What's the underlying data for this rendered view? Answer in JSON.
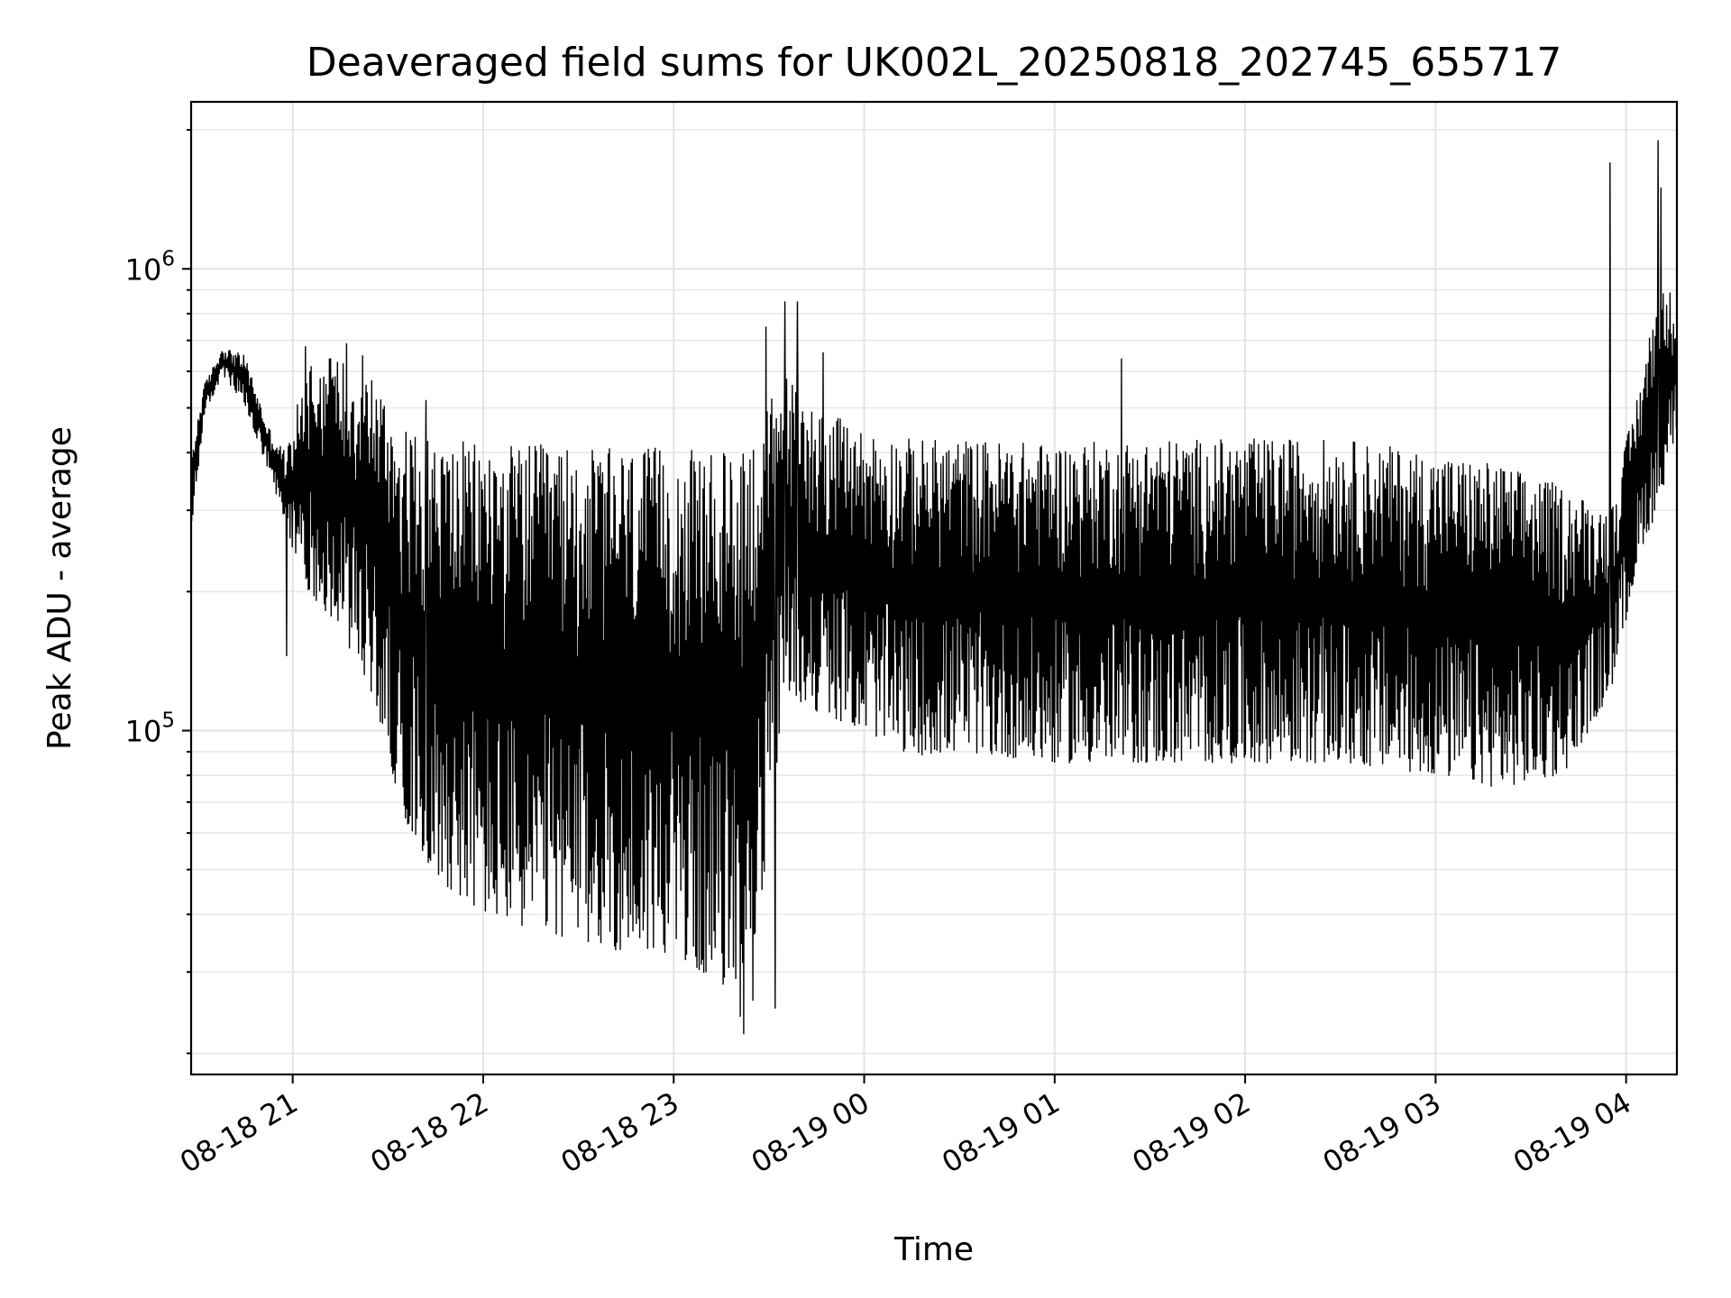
{
  "chart_data": {
    "type": "line",
    "title": "Deaveraged field sums for UK002L_20250818_202745_655717",
    "xlabel": "Time",
    "ylabel": "Peak ADU - average",
    "yscale": "log",
    "ylim": [
      18000,
      2300000
    ],
    "xlim": [
      "2025-08-18 20:28",
      "2025-08-19 04:16"
    ],
    "grid": true,
    "x_ticks": [
      {
        "value": "2025-08-18 21:00",
        "label": "08-18 21"
      },
      {
        "value": "2025-08-18 22:00",
        "label": "08-18 22"
      },
      {
        "value": "2025-08-18 23:00",
        "label": "08-18 23"
      },
      {
        "value": "2025-08-19 00:00",
        "label": "08-19 00"
      },
      {
        "value": "2025-08-19 01:00",
        "label": "08-19 01"
      },
      {
        "value": "2025-08-19 02:00",
        "label": "08-19 02"
      },
      {
        "value": "2025-08-19 03:00",
        "label": "08-19 03"
      },
      {
        "value": "2025-08-19 04:00",
        "label": "08-19 04"
      }
    ],
    "y_ticks": [
      {
        "value": 100000,
        "base": "10",
        "exp": "5"
      },
      {
        "value": 1000000,
        "base": "10",
        "exp": "6"
      }
    ],
    "series": [
      {
        "color": "#000000",
        "envelope": [
          {
            "x": "2025-08-18 20:28",
            "low": 260000,
            "high": 400000
          },
          {
            "x": "2025-08-18 20:32",
            "low": 480000,
            "high": 560000
          },
          {
            "x": "2025-08-18 20:38",
            "low": 590000,
            "high": 680000
          },
          {
            "x": "2025-08-18 20:45",
            "low": 500000,
            "high": 650000
          },
          {
            "x": "2025-08-18 20:52",
            "low": 370000,
            "high": 460000
          },
          {
            "x": "2025-08-18 20:58",
            "low": 270000,
            "high": 400000
          },
          {
            "x": "2025-08-18 21:05",
            "low": 200000,
            "high": 650000
          },
          {
            "x": "2025-08-18 21:15",
            "low": 165000,
            "high": 650000
          },
          {
            "x": "2025-08-18 21:25",
            "low": 120000,
            "high": 600000
          },
          {
            "x": "2025-08-18 21:35",
            "low": 65000,
            "high": 450000
          },
          {
            "x": "2025-08-18 21:45",
            "low": 48000,
            "high": 430000
          },
          {
            "x": "2025-08-18 22:00",
            "low": 40000,
            "high": 420000
          },
          {
            "x": "2025-08-18 22:15",
            "low": 37000,
            "high": 420000
          },
          {
            "x": "2025-08-18 22:30",
            "low": 35000,
            "high": 410000
          },
          {
            "x": "2025-08-18 22:45",
            "low": 33000,
            "high": 410000
          },
          {
            "x": "2025-08-18 23:00",
            "low": 33000,
            "high": 410000
          },
          {
            "x": "2025-08-18 23:15",
            "low": 28000,
            "high": 400000
          },
          {
            "x": "2025-08-18 23:25",
            "low": 30000,
            "high": 450000
          },
          {
            "x": "2025-08-18 23:35",
            "low": 120000,
            "high": 600000
          },
          {
            "x": "2025-08-18 23:45",
            "low": 110000,
            "high": 500000
          },
          {
            "x": "2025-08-19 00:00",
            "low": 100000,
            "high": 450000
          },
          {
            "x": "2025-08-19 00:15",
            "low": 88000,
            "high": 430000
          },
          {
            "x": "2025-08-19 00:30",
            "low": 90000,
            "high": 430000
          },
          {
            "x": "2025-08-19 01:00",
            "low": 85000,
            "high": 420000
          },
          {
            "x": "2025-08-19 01:30",
            "low": 85000,
            "high": 430000
          },
          {
            "x": "2025-08-19 02:00",
            "low": 85000,
            "high": 430000
          },
          {
            "x": "2025-08-19 02:30",
            "low": 85000,
            "high": 430000
          },
          {
            "x": "2025-08-19 03:00",
            "low": 80000,
            "high": 400000
          },
          {
            "x": "2025-08-19 03:20",
            "low": 75000,
            "high": 380000
          },
          {
            "x": "2025-08-19 03:40",
            "low": 80000,
            "high": 340000
          },
          {
            "x": "2025-08-19 03:55",
            "low": 120000,
            "high": 300000
          },
          {
            "x": "2025-08-19 04:05",
            "low": 250000,
            "high": 600000
          },
          {
            "x": "2025-08-19 04:10",
            "low": 300000,
            "high": 900000
          },
          {
            "x": "2025-08-19 04:16",
            "low": 450000,
            "high": 900000
          }
        ],
        "spikes": [
          {
            "x": "2025-08-18 20:58",
            "value": 145000
          },
          {
            "x": "2025-08-18 21:04",
            "value": 680000
          },
          {
            "x": "2025-08-18 21:12",
            "value": 640000
          },
          {
            "x": "2025-08-18 21:17",
            "value": 690000
          },
          {
            "x": "2025-08-18 21:22",
            "value": 650000
          },
          {
            "x": "2025-08-18 21:42",
            "value": 520000
          },
          {
            "x": "2025-08-18 23:21",
            "value": 24000
          },
          {
            "x": "2025-08-18 23:22",
            "value": 22000
          },
          {
            "x": "2025-08-18 23:25",
            "value": 26000
          },
          {
            "x": "2025-08-18 23:29",
            "value": 750000
          },
          {
            "x": "2025-08-18 23:32",
            "value": 25000
          },
          {
            "x": "2025-08-18 23:35",
            "value": 850000
          },
          {
            "x": "2025-08-18 23:39",
            "value": 850000
          },
          {
            "x": "2025-08-18 23:47",
            "value": 660000
          },
          {
            "x": "2025-08-19 01:21",
            "value": 640000
          },
          {
            "x": "2025-08-19 03:55",
            "value": 1700000
          },
          {
            "x": "2025-08-19 04:10",
            "value": 1900000
          },
          {
            "x": "2025-08-19 04:11",
            "value": 1500000
          }
        ]
      }
    ]
  }
}
